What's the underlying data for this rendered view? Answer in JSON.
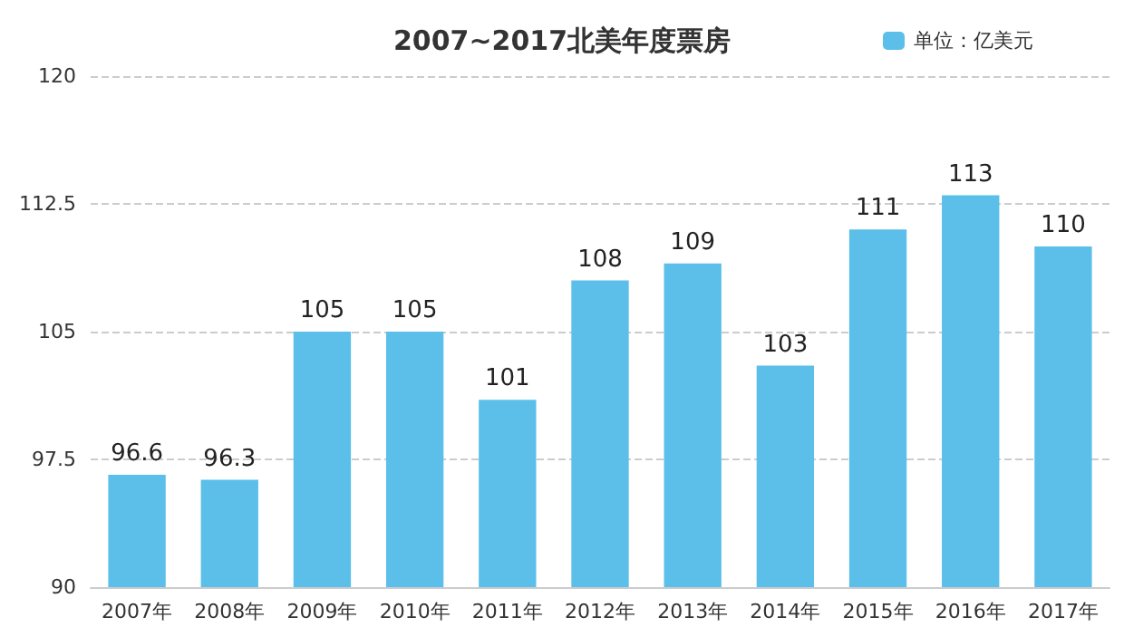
{
  "chart_data": {
    "type": "bar",
    "title": "2007~2017北美年度票房",
    "categories": [
      "2007年",
      "2008年",
      "2009年",
      "2010年",
      "2011年",
      "2012年",
      "2013年",
      "2014年",
      "2015年",
      "2016年",
      "2017年"
    ],
    "series": [
      {
        "name": "单位：亿美元",
        "color": "#5bbfea",
        "values": [
          96.6,
          96.3,
          105,
          105,
          101,
          108,
          109,
          103,
          111,
          113,
          110
        ]
      }
    ],
    "ylim": [
      90,
      120
    ],
    "yticks": [
      90,
      97.5,
      105,
      112.5,
      120
    ],
    "grid": "y",
    "legend": "top right",
    "data_labels": true
  }
}
